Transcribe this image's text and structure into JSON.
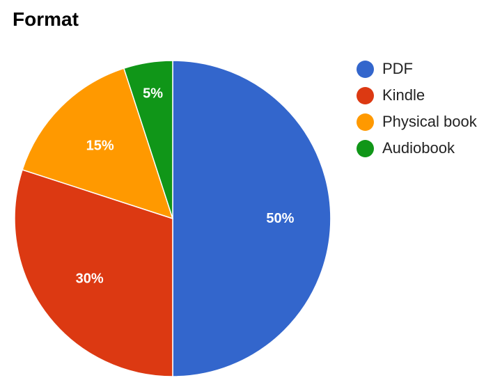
{
  "chart_data": {
    "type": "pie",
    "title": "Format",
    "slices": [
      {
        "name": "PDF",
        "value": 50,
        "label": "50%",
        "color": "#3366cc"
      },
      {
        "name": "Kindle",
        "value": 30,
        "label": "30%",
        "color": "#dc3912"
      },
      {
        "name": "Physical book",
        "value": 15,
        "label": "15%",
        "color": "#ff9900"
      },
      {
        "name": "Audiobook",
        "value": 5,
        "label": "5%",
        "color": "#109618"
      }
    ],
    "legend_position": "right",
    "start_angle": "top",
    "direction": "clockwise"
  }
}
